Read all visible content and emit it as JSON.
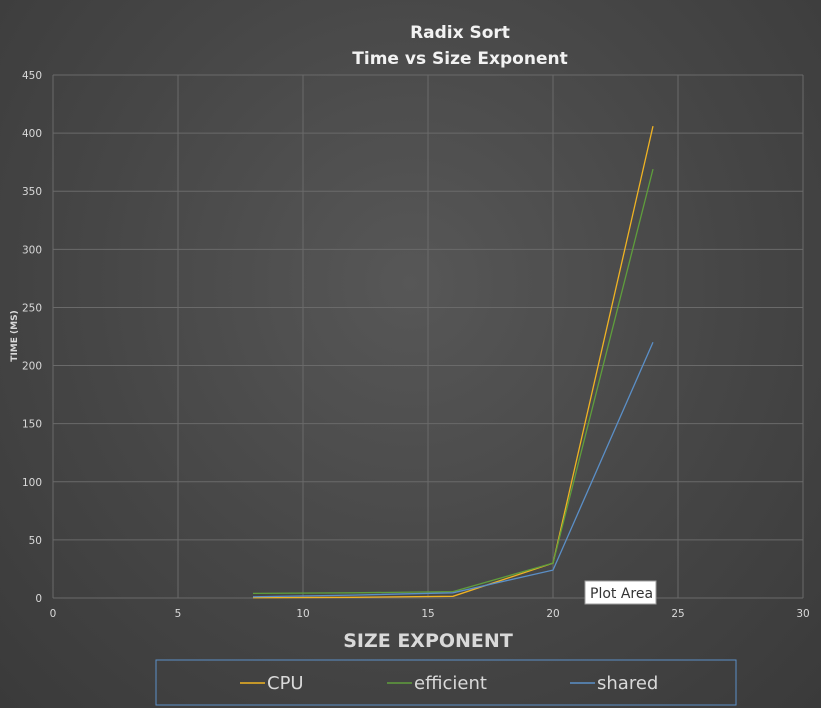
{
  "chart_data": {
    "type": "line",
    "title": "Radix Sort",
    "subtitle": "Time vs Size Exponent",
    "xlabel": "SIZE EXPONENT",
    "ylabel": "TIME (MS)",
    "xlim": [
      0,
      30
    ],
    "ylim": [
      0,
      450
    ],
    "xticks": [
      0,
      5,
      10,
      15,
      20,
      25,
      30
    ],
    "yticks": [
      0,
      50,
      100,
      150,
      200,
      250,
      300,
      350,
      400,
      450
    ],
    "grid": true,
    "legend_position": "bottom",
    "series": [
      {
        "name": "CPU",
        "color": "#f0b323",
        "x": [
          8,
          12,
          16,
          20,
          24
        ],
        "y": [
          0.3,
          0.6,
          1.5,
          30,
          406
        ]
      },
      {
        "name": "efficient",
        "color": "#5f9e3c",
        "x": [
          8,
          12,
          16,
          20,
          24
        ],
        "y": [
          4,
          4.5,
          5.5,
          30,
          369
        ]
      },
      {
        "name": "shared",
        "color": "#5b8fc7",
        "x": [
          8,
          12,
          16,
          20,
          24
        ],
        "y": [
          1,
          2.5,
          4.5,
          24,
          220
        ]
      }
    ]
  },
  "tooltip": {
    "label": "Plot Area"
  }
}
